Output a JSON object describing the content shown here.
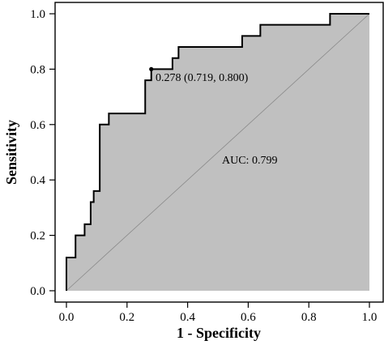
{
  "chart_data": {
    "type": "line",
    "title": "",
    "xlabel": "1 - Specificity",
    "ylabel": "Sensitivity",
    "xlim": [
      0,
      1
    ],
    "ylim": [
      0,
      1
    ],
    "xticks": [
      "0.0",
      "0.2",
      "0.4",
      "0.6",
      "0.8",
      "1.0"
    ],
    "yticks": [
      "0.0",
      "0.2",
      "0.4",
      "0.6",
      "0.8",
      "1.0"
    ],
    "grid": false,
    "fill_under_curve": true,
    "colors": {
      "fill": "#c0c0c0",
      "curve": "#000000",
      "diagonal": "#8a8a8a"
    },
    "roc_points": [
      [
        0.0,
        0.0
      ],
      [
        0.0,
        0.12
      ],
      [
        0.03,
        0.12
      ],
      [
        0.03,
        0.2
      ],
      [
        0.06,
        0.2
      ],
      [
        0.06,
        0.24
      ],
      [
        0.08,
        0.24
      ],
      [
        0.08,
        0.32
      ],
      [
        0.09,
        0.32
      ],
      [
        0.09,
        0.36
      ],
      [
        0.11,
        0.36
      ],
      [
        0.11,
        0.6
      ],
      [
        0.14,
        0.6
      ],
      [
        0.14,
        0.64
      ],
      [
        0.26,
        0.64
      ],
      [
        0.26,
        0.76
      ],
      [
        0.28,
        0.76
      ],
      [
        0.28,
        0.8
      ],
      [
        0.35,
        0.8
      ],
      [
        0.35,
        0.84
      ],
      [
        0.37,
        0.84
      ],
      [
        0.37,
        0.88
      ],
      [
        0.58,
        0.88
      ],
      [
        0.58,
        0.92
      ],
      [
        0.64,
        0.92
      ],
      [
        0.64,
        0.96
      ],
      [
        0.87,
        0.96
      ],
      [
        0.87,
        1.0
      ],
      [
        1.0,
        1.0
      ]
    ],
    "optimal_point": {
      "x": 0.28,
      "y": 0.8,
      "label": "0.278 (0.719, 0.800)"
    },
    "auc": {
      "label": "AUC: 0.799",
      "value": 0.799
    }
  }
}
